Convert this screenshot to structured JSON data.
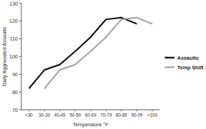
{
  "chart_data": {
    "type": "line",
    "x_label": "Temperature °F",
    "y_label": "Daily Aggravated Assaults",
    "categories": [
      "<30",
      "30-39",
      "40-49",
      "50-59",
      "60-69",
      "70-79",
      "80-89",
      "90-99",
      ">100"
    ],
    "series": [
      {
        "name": "Assaults",
        "color": "#111111",
        "values": [
          82,
          92.5,
          95.5,
          103,
          111,
          121,
          122,
          118.5,
          null
        ]
      },
      {
        "name": "Temp Shift",
        "color": "#a6a6a6",
        "values": [
          null,
          82,
          92.5,
          95.5,
          103,
          111,
          121,
          122,
          118.5
        ]
      }
    ],
    "ylim": [
      70,
      130
    ],
    "yticks": [
      70,
      80,
      90,
      100,
      110,
      120,
      130
    ],
    "grid": false,
    "legend": "right"
  }
}
